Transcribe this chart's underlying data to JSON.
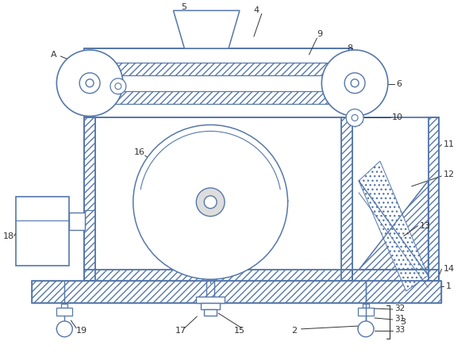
{
  "bg_color": "#ffffff",
  "lc": "#5577aa",
  "label_color": "#333333",
  "figsize": [
    5.91,
    4.59
  ],
  "dpi": 100
}
